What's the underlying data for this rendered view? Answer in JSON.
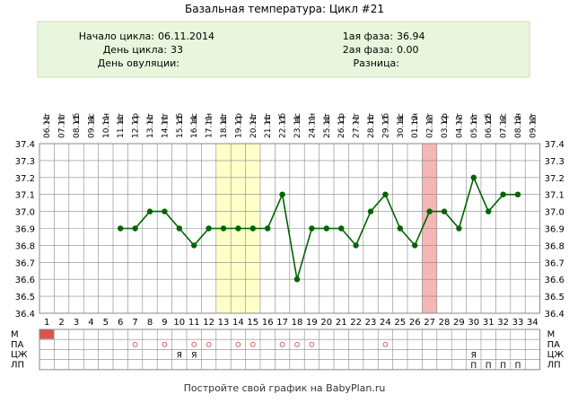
{
  "header": {
    "title": "Базальная температура: Цикл #21",
    "start_label": "Начало цикла:",
    "start_value": "06.11.2014",
    "day_label": "День цикла:",
    "day_value": "33",
    "ovulation_label": "День овуляции:",
    "ovulation_value": "",
    "phase1_label": "1ая фаза:",
    "phase1_value": "36.94",
    "phase2_label": "2ая фаза:",
    "phase2_value": "0.00",
    "diff_label": "Разница:",
    "diff_value": ""
  },
  "footer": "Постройте свой график на BabyPlan.ru",
  "colors": {
    "line": "#006400",
    "marker": "#006400",
    "grid": "#888888",
    "header_bg": "#e9f5dc",
    "header_border": "#c8dfb4",
    "highlight_yellow": "#ffffc8",
    "highlight_red": "#f6b6b6",
    "menses": "#d9534f",
    "circle_mark": "#e06060"
  },
  "chart_data": {
    "type": "line",
    "title": "Базальная температура: Цикл #21",
    "xlabel": "",
    "ylabel": "",
    "ylim": [
      36.4,
      37.4
    ],
    "y_ticks": [
      "37.4",
      "37.3",
      "37.2",
      "37.1",
      "37.0",
      "36.9",
      "36.8",
      "36.7",
      "36.6",
      "36.5",
      "36.4"
    ],
    "grid": true,
    "weekdays": [
      "чт",
      "пт",
      "сб",
      "вс",
      "пн",
      "вт",
      "ср",
      "чт",
      "пт",
      "сб",
      "вс",
      "пн",
      "вт",
      "ср",
      "чт",
      "пт",
      "сб",
      "вс",
      "пн",
      "вт",
      "ср",
      "чт",
      "пт",
      "сб",
      "вс",
      "пн",
      "вт",
      "ср",
      "чт",
      "пт",
      "сб",
      "вс",
      "пн",
      "вт"
    ],
    "dates": [
      "06.11",
      "07.11",
      "08.11",
      "09.11",
      "10.11",
      "11.11",
      "12.11",
      "13.11",
      "14.11",
      "15.11",
      "16.11",
      "17.11",
      "18.11",
      "19.11",
      "20.11",
      "21.11",
      "22.11",
      "23.11",
      "24.11",
      "25.11",
      "26.11",
      "27.11",
      "28.11",
      "29.11",
      "30.11",
      "01.12",
      "02.12",
      "03.12",
      "04.12",
      "05.12",
      "06.12",
      "07.12",
      "08.12",
      "09.12"
    ],
    "days": [
      1,
      2,
      3,
      4,
      5,
      6,
      7,
      8,
      9,
      10,
      11,
      12,
      13,
      14,
      15,
      16,
      17,
      18,
      19,
      20,
      21,
      22,
      23,
      24,
      25,
      26,
      27,
      28,
      29,
      30,
      31,
      32,
      33,
      34
    ],
    "series": [
      {
        "values": [
          null,
          null,
          null,
          null,
          null,
          36.9,
          36.9,
          37.0,
          37.0,
          36.9,
          36.8,
          36.9,
          36.9,
          36.9,
          36.9,
          36.9,
          37.1,
          36.6,
          36.9,
          36.9,
          36.9,
          36.8,
          37.0,
          37.1,
          36.9,
          36.8,
          37.0,
          37.0,
          36.9,
          37.2,
          37.0,
          37.1,
          37.1,
          null
        ]
      }
    ],
    "highlight_yellow_days": [
      13,
      15
    ],
    "highlight_red_day": 27,
    "row_labels": [
      "М",
      "ПА",
      "ЦЖ",
      "ЛП"
    ],
    "row_M": [
      1
    ],
    "row_PA": [
      7,
      9,
      11,
      12,
      14,
      15,
      17,
      18,
      19,
      24
    ],
    "row_CJ": {
      "10": "Я",
      "11": "Я",
      "30": "Я"
    },
    "row_LP": {
      "30": "П",
      "31": "П",
      "32": "П",
      "33": "П"
    }
  }
}
